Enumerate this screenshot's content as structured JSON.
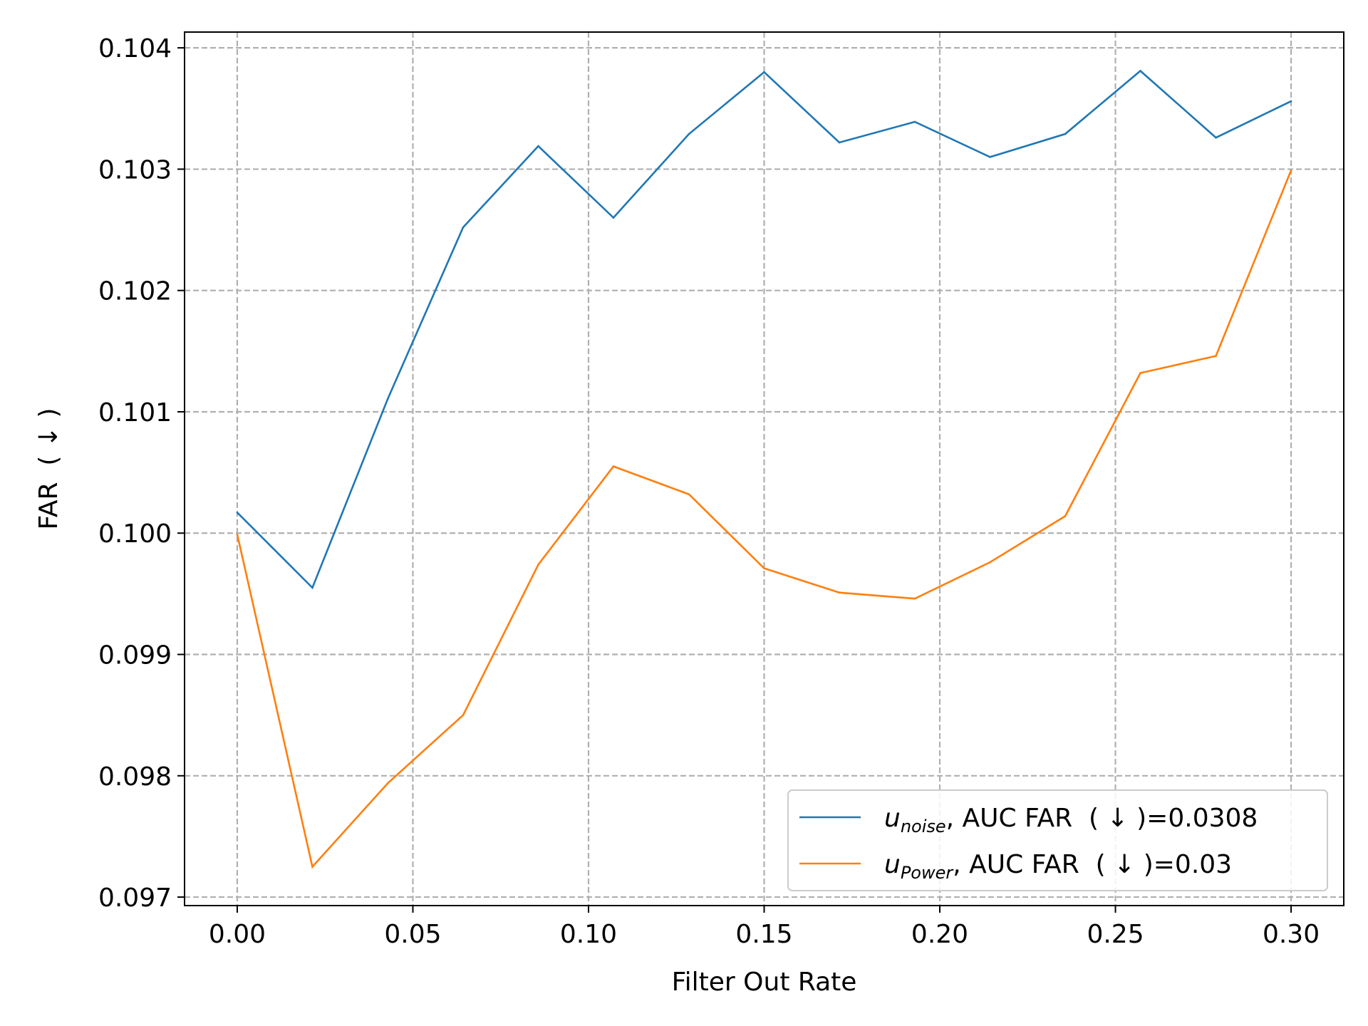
{
  "chart_data": {
    "type": "line",
    "title": "",
    "xlabel": "Filter Out Rate",
    "ylabel": "FAR  ( ↓ )",
    "xlim": [
      -0.015,
      0.315
    ],
    "ylim": [
      0.09693,
      0.10413
    ],
    "xticks": [
      0.0,
      0.05,
      0.1,
      0.15,
      0.2,
      0.25,
      0.3
    ],
    "xtick_labels": [
      "0.00",
      "0.05",
      "0.10",
      "0.15",
      "0.20",
      "0.25",
      "0.30"
    ],
    "yticks": [
      0.097,
      0.098,
      0.099,
      0.1,
      0.101,
      0.102,
      0.103,
      0.104
    ],
    "ytick_labels": [
      "0.097",
      "0.098",
      "0.099",
      "0.100",
      "0.101",
      "0.102",
      "0.103",
      "0.104"
    ],
    "grid": true,
    "legend_position": "lower-right",
    "x": [
      0.0,
      0.0214,
      0.0429,
      0.0643,
      0.0857,
      0.1071,
      0.1286,
      0.15,
      0.1714,
      0.1929,
      0.2143,
      0.2357,
      0.2571,
      0.2786,
      0.3
    ],
    "series": [
      {
        "name": "noise",
        "label_main": "u",
        "label_sub": "noise",
        "label_suffix": ", AUC FAR  ( ↓ )=0.0308",
        "color": "#1f77b4",
        "values": [
          0.10017,
          0.09955,
          0.10111,
          0.10252,
          0.10319,
          0.1026,
          0.10329,
          0.1038,
          0.10322,
          0.10339,
          0.1031,
          0.10329,
          0.10381,
          0.10326,
          0.10356
        ]
      },
      {
        "name": "Power",
        "label_main": "u",
        "label_sub": "Power",
        "label_suffix": ", AUC FAR  ( ↓ )=0.03",
        "color": "#ff7f0e",
        "values": [
          0.09999,
          0.09725,
          0.09794,
          0.0985,
          0.09974,
          0.10055,
          0.10032,
          0.09971,
          0.09951,
          0.09946,
          0.09976,
          0.10014,
          0.10132,
          0.10146,
          0.10299
        ]
      }
    ]
  }
}
